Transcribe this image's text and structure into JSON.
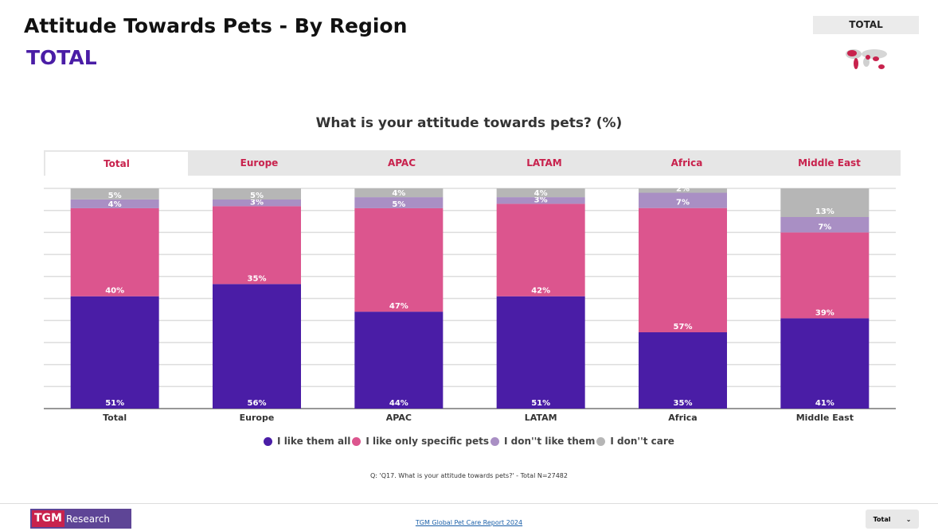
{
  "header": {
    "title": "Attitude Towards Pets - By Region",
    "subtitle": "TOTAL",
    "region_box": "TOTAL",
    "map_icon": "world-map-icon"
  },
  "tabs": [
    {
      "label": "Total",
      "active": true
    },
    {
      "label": "Europe"
    },
    {
      "label": "APAC"
    },
    {
      "label": "LATAM"
    },
    {
      "label": "Africa"
    },
    {
      "label": "Middle East"
    }
  ],
  "chart_data": {
    "type": "bar",
    "stacked": true,
    "percent_stacked": true,
    "title": "What is your attitude towards pets? (%)",
    "categories": [
      "Total",
      "Europe",
      "APAC",
      "LATAM",
      "Africa",
      "Middle East"
    ],
    "series": [
      {
        "name": "I like them all",
        "color": "#4a1da6",
        "values": [
          51,
          56,
          44,
          51,
          35,
          41
        ]
      },
      {
        "name": "I like only specific pets",
        "color": "#dc558e",
        "values": [
          40,
          35,
          47,
          42,
          57,
          39
        ]
      },
      {
        "name": "I don''t like them",
        "color": "#a98fc4",
        "values": [
          4,
          3,
          5,
          3,
          7,
          7
        ]
      },
      {
        "name": "I don''t care",
        "color": "#b6b6b6",
        "values": [
          5,
          5,
          4,
          4,
          2,
          13
        ]
      }
    ],
    "ylim": [
      0,
      100
    ],
    "grid": true,
    "legend": "bottom"
  },
  "note": "Q: 'Q17. What is your attitude towards pets?' - Total N=27482",
  "footer": {
    "logo_a": "TGM",
    "logo_b": "Research",
    "report_link": "TGM Global Pet Care Report 2024",
    "dropdown_value": "Total",
    "dropdown_icon": "⌄"
  }
}
